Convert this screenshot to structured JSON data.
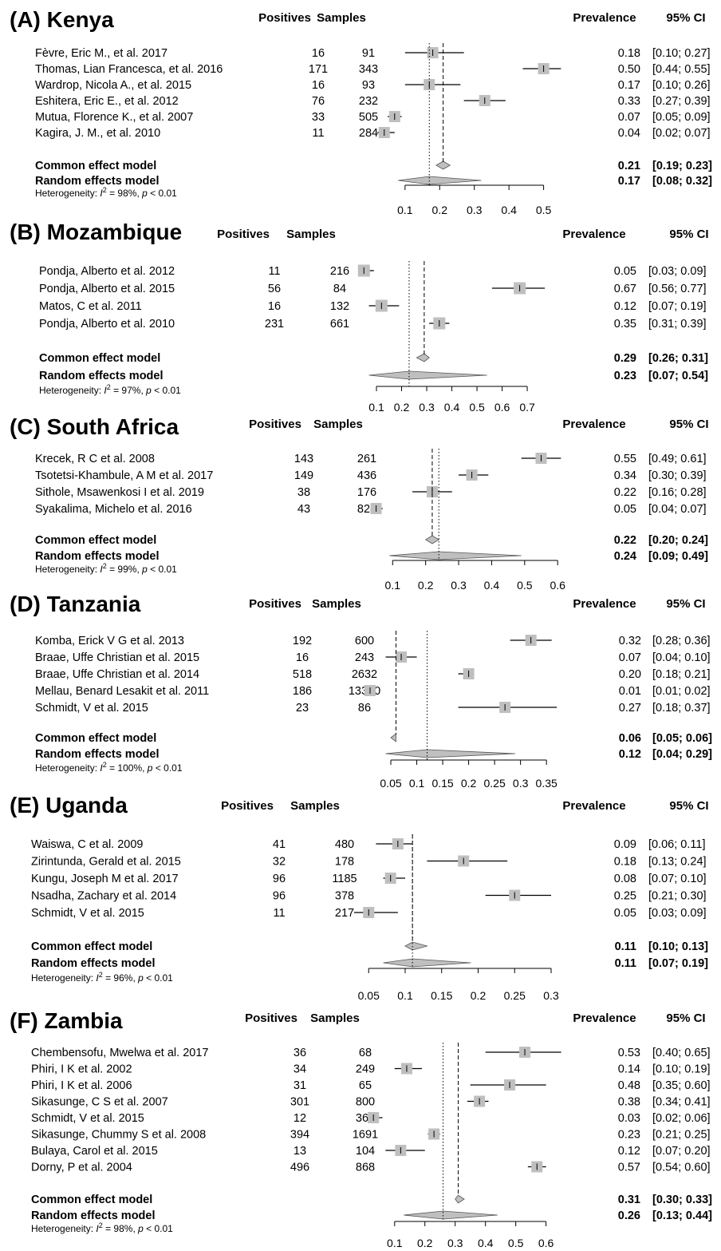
{
  "colors": {
    "box": "#bfbfbf",
    "diamond": "#bfbfbf",
    "line": "#000000"
  },
  "chart_data": [
    {
      "type": "forest",
      "title": "(A) Kenya",
      "headers": {
        "positives": "Positives",
        "samples": "Samples",
        "prevalence": "Prevalence",
        "ci": "95% CI"
      },
      "studies": [
        {
          "name": "Fèvre, Eric M., et al. 2017",
          "positives": "16",
          "samples": "91",
          "estimate": 0.18,
          "lower": 0.1,
          "upper": 0.27,
          "text": "0.18",
          "ci": "[0.10; 0.27]"
        },
        {
          "name": "Thomas, Lian Francesca, et al. 2016",
          "positives": "171",
          "samples": "343",
          "estimate": 0.5,
          "lower": 0.44,
          "upper": 0.55,
          "text": "0.50",
          "ci": "[0.44; 0.55]"
        },
        {
          "name": "Wardrop, Nicola A., et al. 2015",
          "positives": "16",
          "samples": "93",
          "estimate": 0.17,
          "lower": 0.1,
          "upper": 0.26,
          "text": "0.17",
          "ci": "[0.10; 0.26]"
        },
        {
          "name": "Eshitera, Eric E., et al. 2012",
          "positives": "76",
          "samples": "232",
          "estimate": 0.33,
          "lower": 0.27,
          "upper": 0.39,
          "text": "0.33",
          "ci": "[0.27; 0.39]"
        },
        {
          "name": "Mutua, Florence K., et al. 2007",
          "positives": "33",
          "samples": "505",
          "estimate": 0.07,
          "lower": 0.05,
          "upper": 0.09,
          "text": "0.07",
          "ci": "[0.05; 0.09]"
        },
        {
          "name": "Kagira, J. M., et al. 2010",
          "positives": "11",
          "samples": "284",
          "estimate": 0.04,
          "lower": 0.02,
          "upper": 0.07,
          "text": "0.04",
          "ci": "[0.02; 0.07]"
        }
      ],
      "common": {
        "label": "Common effect model",
        "estimate": 0.21,
        "lower": 0.19,
        "upper": 0.23,
        "text": "0.21",
        "ci": "[0.19; 0.23]"
      },
      "random": {
        "label": "Random effects model",
        "estimate": 0.17,
        "lower": 0.08,
        "upper": 0.32,
        "text": "0.17",
        "ci": "[0.08; 0.32]"
      },
      "heterogeneity": {
        "prefix": "Heterogeneity: ",
        "i2": "I",
        "sup": "2",
        "value": " = 98%, ",
        "p": "p",
        "rest": " < 0.01"
      },
      "xticks": [
        "0.1",
        "0.2",
        "0.3",
        "0.4",
        "0.5"
      ],
      "xlim": [
        0.0,
        0.5
      ]
    },
    {
      "type": "forest",
      "title": "(B) Mozambique",
      "headers": {
        "positives": "Positives",
        "samples": "Samples",
        "prevalence": "Prevalence",
        "ci": "95% CI"
      },
      "studies": [
        {
          "name": "Pondja, Alberto et al. 2012",
          "positives": "11",
          "samples": "216",
          "estimate": 0.05,
          "lower": 0.03,
          "upper": 0.09,
          "text": "0.05",
          "ci": "[0.03; 0.09]"
        },
        {
          "name": "Pondja, Alberto et al. 2015",
          "positives": "56",
          "samples": "84",
          "estimate": 0.67,
          "lower": 0.56,
          "upper": 0.77,
          "text": "0.67",
          "ci": "[0.56; 0.77]"
        },
        {
          "name": "Matos, C et al. 2011",
          "positives": "16",
          "samples": "132",
          "estimate": 0.12,
          "lower": 0.07,
          "upper": 0.19,
          "text": "0.12",
          "ci": "[0.07; 0.19]"
        },
        {
          "name": "Pondja, Alberto et al. 2010",
          "positives": "231",
          "samples": "661",
          "estimate": 0.35,
          "lower": 0.31,
          "upper": 0.39,
          "text": "0.35",
          "ci": "[0.31; 0.39]"
        }
      ],
      "common": {
        "label": "Common effect model",
        "estimate": 0.29,
        "lower": 0.26,
        "upper": 0.31,
        "text": "0.29",
        "ci": "[0.26; 0.31]"
      },
      "random": {
        "label": "Random effects model",
        "estimate": 0.23,
        "lower": 0.07,
        "upper": 0.54,
        "text": "0.23",
        "ci": "[0.07; 0.54]"
      },
      "heterogeneity": {
        "prefix": "Heterogeneity: ",
        "i2": "I",
        "sup": "2",
        "value": " = 97%, ",
        "p": "p",
        "rest": " < 0.01"
      },
      "xticks": [
        "0.1",
        "0.2",
        "0.3",
        "0.4",
        "0.5",
        "0.6",
        "0.7"
      ],
      "xlim": [
        0.0,
        0.7
      ]
    },
    {
      "type": "forest",
      "title": "(C) South Africa",
      "headers": {
        "positives": "Positives",
        "samples": "Samples",
        "prevalence": "Prevalence",
        "ci": "95% CI"
      },
      "studies": [
        {
          "name": "Krecek, R C et al. 2008",
          "positives": "143",
          "samples": "261",
          "estimate": 0.55,
          "lower": 0.49,
          "upper": 0.61,
          "text": "0.55",
          "ci": "[0.49; 0.61]"
        },
        {
          "name": "Tsotetsi-Khambule, A M et al. 2017",
          "positives": "149",
          "samples": "436",
          "estimate": 0.34,
          "lower": 0.3,
          "upper": 0.39,
          "text": "0.34",
          "ci": "[0.30; 0.39]"
        },
        {
          "name": "Sithole, Msawenkosi I et al. 2019",
          "positives": "38",
          "samples": "176",
          "estimate": 0.22,
          "lower": 0.16,
          "upper": 0.28,
          "text": "0.22",
          "ci": "[0.16; 0.28]"
        },
        {
          "name": "Syakalima, Michelo et al. 2016",
          "positives": "43",
          "samples": "824",
          "estimate": 0.05,
          "lower": 0.04,
          "upper": 0.07,
          "text": "0.05",
          "ci": "[0.04; 0.07]"
        }
      ],
      "common": {
        "label": "Common effect model",
        "estimate": 0.22,
        "lower": 0.2,
        "upper": 0.24,
        "text": "0.22",
        "ci": "[0.20; 0.24]"
      },
      "random": {
        "label": "Random effects model",
        "estimate": 0.24,
        "lower": 0.09,
        "upper": 0.49,
        "text": "0.24",
        "ci": "[0.09; 0.49]"
      },
      "heterogeneity": {
        "prefix": "Heterogeneity: ",
        "i2": "I",
        "sup": "2",
        "value": " = 99%, ",
        "p": "p",
        "rest": " < 0.01"
      },
      "xticks": [
        "0.1",
        "0.2",
        "0.3",
        "0.4",
        "0.5",
        "0.6"
      ],
      "xlim": [
        0.0,
        0.6
      ]
    },
    {
      "type": "forest",
      "title": "(D) Tanzania",
      "headers": {
        "positives": "Positives",
        "samples": "Samples",
        "prevalence": "Prevalence",
        "ci": "95% CI"
      },
      "studies": [
        {
          "name": "Komba, Erick V G et al. 2013",
          "positives": "192",
          "samples": "600",
          "estimate": 0.32,
          "lower": 0.28,
          "upper": 0.36,
          "text": "0.32",
          "ci": "[0.28; 0.36]"
        },
        {
          "name": "Braae, Uffe Christian et al. 2015",
          "positives": "16",
          "samples": "243",
          "estimate": 0.07,
          "lower": 0.04,
          "upper": 0.1,
          "text": "0.07",
          "ci": "[0.04; 0.10]"
        },
        {
          "name": "Braae, Uffe Christian et al. 2014",
          "positives": "518",
          "samples": "2632",
          "estimate": 0.2,
          "lower": 0.18,
          "upper": 0.21,
          "text": "0.20",
          "ci": "[0.18; 0.21]"
        },
        {
          "name": "Mellau, Benard Lesakit et al. 2011",
          "positives": "186",
          "samples": "13310",
          "estimate": 0.01,
          "lower": 0.01,
          "upper": 0.02,
          "text": "0.01",
          "ci": "[0.01; 0.02]"
        },
        {
          "name": "Schmidt, V et al. 2015",
          "positives": "23",
          "samples": "86",
          "estimate": 0.27,
          "lower": 0.18,
          "upper": 0.37,
          "text": "0.27",
          "ci": "[0.18; 0.37]"
        }
      ],
      "common": {
        "label": "Common effect model",
        "estimate": 0.06,
        "lower": 0.05,
        "upper": 0.06,
        "text": "0.06",
        "ci": "[0.05; 0.06]"
      },
      "random": {
        "label": "Random effects model",
        "estimate": 0.12,
        "lower": 0.04,
        "upper": 0.29,
        "text": "0.12",
        "ci": "[0.04; 0.29]"
      },
      "heterogeneity": {
        "prefix": "Heterogeneity: ",
        "i2": "I",
        "sup": "2",
        "value": " = 100%, ",
        "p": "p",
        "rest": " < 0.01"
      },
      "xticks": [
        "0.05",
        "0.1",
        "0.15",
        "0.2",
        "0.25",
        "0.3",
        "0.35"
      ],
      "xlim": [
        0.0,
        0.35
      ]
    },
    {
      "type": "forest",
      "title": "(E) Uganda",
      "headers": {
        "positives": "Positives",
        "samples": "Samples",
        "prevalence": "Prevalence",
        "ci": "95% CI"
      },
      "studies": [
        {
          "name": "Waiswa, C et al. 2009",
          "positives": "41",
          "samples": "480",
          "estimate": 0.09,
          "lower": 0.06,
          "upper": 0.11,
          "text": "0.09",
          "ci": "[0.06; 0.11]"
        },
        {
          "name": "Zirintunda, Gerald et al. 2015",
          "positives": "32",
          "samples": "178",
          "estimate": 0.18,
          "lower": 0.13,
          "upper": 0.24,
          "text": "0.18",
          "ci": "[0.13; 0.24]"
        },
        {
          "name": "Kungu, Joseph M et al. 2017",
          "positives": "96",
          "samples": "1185",
          "estimate": 0.08,
          "lower": 0.07,
          "upper": 0.1,
          "text": "0.08",
          "ci": "[0.07; 0.10]"
        },
        {
          "name": "Nsadha, Zachary et al. 2014",
          "positives": "96",
          "samples": "378",
          "estimate": 0.25,
          "lower": 0.21,
          "upper": 0.3,
          "text": "0.25",
          "ci": "[0.21; 0.30]"
        },
        {
          "name": "Schmidt, V et al. 2015",
          "positives": "11",
          "samples": "217",
          "estimate": 0.05,
          "lower": 0.03,
          "upper": 0.09,
          "text": "0.05",
          "ci": "[0.03; 0.09]"
        }
      ],
      "common": {
        "label": "Common effect model",
        "estimate": 0.11,
        "lower": 0.1,
        "upper": 0.13,
        "text": "0.11",
        "ci": "[0.10; 0.13]"
      },
      "random": {
        "label": "Random effects model",
        "estimate": 0.11,
        "lower": 0.07,
        "upper": 0.19,
        "text": "0.11",
        "ci": "[0.07; 0.19]"
      },
      "heterogeneity": {
        "prefix": "Heterogeneity: ",
        "i2": "I",
        "sup": "2",
        "value": " = 96%, ",
        "p": "p",
        "rest": " < 0.01"
      },
      "xticks": [
        "0.05",
        "0.1",
        "0.15",
        "0.2",
        "0.25",
        "0.3"
      ],
      "xlim": [
        0.0,
        0.3
      ]
    },
    {
      "type": "forest",
      "title": "(F) Zambia",
      "headers": {
        "positives": "Positives",
        "samples": "Samples",
        "prevalence": "Prevalence",
        "ci": "95% CI"
      },
      "studies": [
        {
          "name": "Chembensofu, Mwelwa et al. 2017",
          "positives": "36",
          "samples": "68",
          "estimate": 0.53,
          "lower": 0.4,
          "upper": 0.65,
          "text": "0.53",
          "ci": "[0.40; 0.65]"
        },
        {
          "name": "Phiri, I K et al. 2002",
          "positives": "34",
          "samples": "249",
          "estimate": 0.14,
          "lower": 0.1,
          "upper": 0.19,
          "text": "0.14",
          "ci": "[0.10; 0.19]"
        },
        {
          "name": "Phiri, I K et al. 2006",
          "positives": "31",
          "samples": "65",
          "estimate": 0.48,
          "lower": 0.35,
          "upper": 0.6,
          "text": "0.48",
          "ci": "[0.35; 0.60]"
        },
        {
          "name": "Sikasunge, C S et al. 2007",
          "positives": "301",
          "samples": "800",
          "estimate": 0.38,
          "lower": 0.34,
          "upper": 0.41,
          "text": "0.38",
          "ci": "[0.34; 0.41]"
        },
        {
          "name": "Schmidt, V et al. 2015",
          "positives": "12",
          "samples": "367",
          "estimate": 0.03,
          "lower": 0.02,
          "upper": 0.06,
          "text": "0.03",
          "ci": "[0.02; 0.06]"
        },
        {
          "name": "Sikasunge, Chummy S et al. 2008",
          "positives": "394",
          "samples": "1691",
          "estimate": 0.23,
          "lower": 0.21,
          "upper": 0.25,
          "text": "0.23",
          "ci": "[0.21; 0.25]"
        },
        {
          "name": "Bulaya, Carol et al. 2015",
          "positives": "13",
          "samples": "104",
          "estimate": 0.12,
          "lower": 0.07,
          "upper": 0.2,
          "text": "0.12",
          "ci": "[0.07; 0.20]"
        },
        {
          "name": "Dorny, P et al. 2004",
          "positives": "496",
          "samples": "868",
          "estimate": 0.57,
          "lower": 0.54,
          "upper": 0.6,
          "text": "0.57",
          "ci": "[0.54; 0.60]"
        }
      ],
      "common": {
        "label": "Common effect model",
        "estimate": 0.31,
        "lower": 0.3,
        "upper": 0.33,
        "text": "0.31",
        "ci": "[0.30; 0.33]"
      },
      "random": {
        "label": "Random effects model",
        "estimate": 0.26,
        "lower": 0.13,
        "upper": 0.44,
        "text": "0.26",
        "ci": "[0.13; 0.44]"
      },
      "heterogeneity": {
        "prefix": "Heterogeneity: ",
        "i2": "I",
        "sup": "2",
        "value": " = 98%, ",
        "p": "p",
        "rest": " < 0.01"
      },
      "xticks": [
        "0.1",
        "0.2",
        "0.3",
        "0.4",
        "0.5",
        "0.6"
      ],
      "xlim": [
        0.0,
        0.6
      ]
    }
  ]
}
